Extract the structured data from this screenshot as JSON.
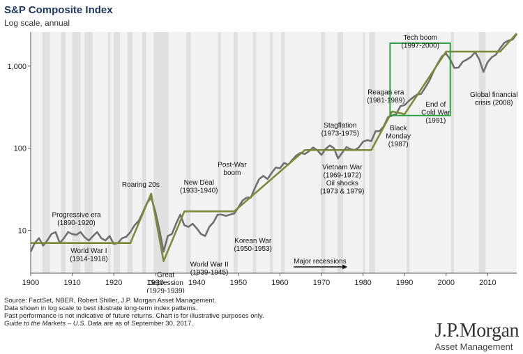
{
  "header": {
    "title": "S&P Composite Index",
    "subtitle": "Log scale, annual"
  },
  "chart_data": {
    "type": "line",
    "title": "S&P Composite Index",
    "subtitle": "Log scale, annual",
    "y_scale": "log",
    "xlim": [
      1900,
      2017
    ],
    "ylim": [
      3,
      2600
    ],
    "x_ticks": [
      1900,
      1910,
      1920,
      1930,
      1940,
      1950,
      1960,
      1970,
      1980,
      1990,
      2000,
      2010
    ],
    "y_ticks": [
      {
        "value": 10,
        "label": "10"
      },
      {
        "value": 100,
        "label": "100"
      },
      {
        "value": 1000,
        "label": "1,000"
      }
    ],
    "colors": {
      "index_line": "#6f6f6f",
      "trend_line": "#7b8b3a",
      "highlight_box": "#2ea043",
      "recession_band": "#e0e0e0",
      "background": "#f2f2f2"
    },
    "series": [
      {
        "role": "index",
        "x": [
          1900,
          1901,
          1902,
          1903,
          1904,
          1905,
          1906,
          1907,
          1908,
          1909,
          1910,
          1911,
          1912,
          1913,
          1914,
          1915,
          1916,
          1917,
          1918,
          1919,
          1920,
          1921,
          1922,
          1923,
          1924,
          1925,
          1926,
          1927,
          1928,
          1929,
          1930,
          1931,
          1932,
          1933,
          1934,
          1935,
          1936,
          1937,
          1938,
          1939,
          1940,
          1941,
          1942,
          1943,
          1944,
          1945,
          1946,
          1947,
          1948,
          1949,
          1950,
          1951,
          1952,
          1953,
          1954,
          1955,
          1956,
          1957,
          1958,
          1959,
          1960,
          1961,
          1962,
          1963,
          1964,
          1965,
          1966,
          1967,
          1968,
          1969,
          1970,
          1971,
          1972,
          1973,
          1974,
          1975,
          1976,
          1977,
          1978,
          1979,
          1980,
          1981,
          1982,
          1983,
          1984,
          1985,
          1986,
          1987,
          1988,
          1989,
          1990,
          1991,
          1992,
          1993,
          1994,
          1995,
          1996,
          1997,
          1998,
          1999,
          2000,
          2001,
          2002,
          2003,
          2004,
          2005,
          2006,
          2007,
          2008,
          2009,
          2010,
          2011,
          2012,
          2013,
          2014,
          2015,
          2016,
          2017
        ],
        "values": [
          5.5,
          7.0,
          8.0,
          6.5,
          7.5,
          9.0,
          9.5,
          7.0,
          8.0,
          9.5,
          9.0,
          8.8,
          9.5,
          8.2,
          7.5,
          8.5,
          9.5,
          8.0,
          7.5,
          8.5,
          6.8,
          7.0,
          8.0,
          8.3,
          9.5,
          11.5,
          13.0,
          16.5,
          21.5,
          25.0,
          17.0,
          10.0,
          5.5,
          8.5,
          9.0,
          12.0,
          15.5,
          11.5,
          11.0,
          12.0,
          10.5,
          9.0,
          8.5,
          11.0,
          12.5,
          15.5,
          15.5,
          15.0,
          15.5,
          16.0,
          19.0,
          23.0,
          25.0,
          25.0,
          33.0,
          42.0,
          46.0,
          42.0,
          50.0,
          58.0,
          57.0,
          66.0,
          63.0,
          72.0,
          82.0,
          88.0,
          85.0,
          92.0,
          102.0,
          94.0,
          83.0,
          98.0,
          108.0,
          100.0,
          75.0,
          88.0,
          103.0,
          97.0,
          95.0,
          102.0,
          120.0,
          125.0,
          122.0,
          160.0,
          162.0,
          185.0,
          238.0,
          250.0,
          260.0,
          325.0,
          335.0,
          375.0,
          415.0,
          450.0,
          460.0,
          550.0,
          670.0,
          870.0,
          1080.0,
          1320.0,
          1420.0,
          1200.0,
          950.0,
          960.0,
          1130.0,
          1200.0,
          1300.0,
          1480.0,
          1200.0,
          850.0,
          1120.0,
          1280.0,
          1380.0,
          1650.0,
          1920.0,
          2050.0,
          2100.0,
          2450.0
        ]
      },
      {
        "role": "trend",
        "x": [
          1900,
          1924,
          1929,
          1932,
          1937,
          1949,
          1966,
          1982,
          1987,
          1990,
          2000,
          2013,
          2017
        ],
        "values": [
          7.0,
          7.0,
          28.0,
          4.2,
          17.0,
          17.0,
          95.0,
          95.0,
          280.0,
          260.0,
          1500.0,
          1500.0,
          2500.0
        ]
      }
    ],
    "highlight": {
      "x": [
        1986.5,
        2001
      ],
      "y": [
        250,
        3100
      ]
    },
    "recession_bands": [
      [
        1902.8,
        1904.6
      ],
      [
        1907.3,
        1908.4
      ],
      [
        1910.0,
        1912.0
      ],
      [
        1913.0,
        1914.9
      ],
      [
        1918.6,
        1919.2
      ],
      [
        1920.0,
        1921.5
      ],
      [
        1923.3,
        1924.5
      ],
      [
        1926.8,
        1927.8
      ],
      [
        1929.6,
        1933.2
      ],
      [
        1937.4,
        1938.5
      ],
      [
        1945.1,
        1945.8
      ],
      [
        1948.9,
        1949.8
      ],
      [
        1953.5,
        1954.3
      ],
      [
        1957.6,
        1958.3
      ],
      [
        1960.3,
        1961.1
      ],
      [
        1969.9,
        1970.9
      ],
      [
        1973.9,
        1975.2
      ],
      [
        1980.0,
        1980.5
      ],
      [
        1981.5,
        1982.9
      ],
      [
        1990.5,
        1991.2
      ],
      [
        2001.2,
        2001.9
      ],
      [
        2007.9,
        2009.5
      ]
    ],
    "annotations": [
      {
        "lines": [
          "Progressive era",
          "(1890-1920)"
        ],
        "x": 1911,
        "y": 14.5
      },
      {
        "lines": [
          "Roaring 20s"
        ],
        "x": 1926.5,
        "y": 34
      },
      {
        "lines": [
          "World War I",
          "(1914-1918)"
        ],
        "x": 1914,
        "y": 5.3
      },
      {
        "lines": [
          "New Deal",
          "(1933-1940)"
        ],
        "x": 1940.5,
        "y": 36
      },
      {
        "lines": [
          "Great",
          "Depression",
          "(1929-1939)"
        ],
        "x": 1932.5,
        "y": 2.7
      },
      {
        "lines": [
          "World War II",
          "(1939-1945)"
        ],
        "x": 1943,
        "y": 3.6
      },
      {
        "lines": [
          "Post-War",
          "boom"
        ],
        "x": 1948.5,
        "y": 59
      },
      {
        "lines": [
          "Korean War",
          "(1950-1953)"
        ],
        "x": 1953.5,
        "y": 7.0
      },
      {
        "lines": [
          "Stagflation",
          "(1973-1975)"
        ],
        "x": 1974.5,
        "y": 178
      },
      {
        "lines": [
          "Vietnam War",
          "(1969-1972)",
          "Oil shocks",
          "(1973 & 1979)"
        ],
        "x": 1975,
        "y": 55
      },
      {
        "lines": [
          "Reagan era",
          "(1981-1989)"
        ],
        "x": 1985.5,
        "y": 450
      },
      {
        "lines": [
          "Tech boom",
          "(1997-2000)"
        ],
        "x": 1993.8,
        "y": 2100
      },
      {
        "lines": [
          "Black",
          "Monday",
          "(1987)"
        ],
        "x": 1988.5,
        "y": 165
      },
      {
        "lines": [
          "End of",
          "Cold War",
          "(1991)"
        ],
        "x": 1997.5,
        "y": 320
      },
      {
        "lines": [
          "Global financial",
          "crisis (2008)"
        ],
        "x": 2011.5,
        "y": 420
      }
    ],
    "recessions_label": "Major recessions"
  },
  "footer": {
    "source_lines": [
      "Source: FactSet, NBER, Robert Shiller, J.P. Morgan Asset Management.",
      "Data shown in log scale to best illustrate long-term index patterns.",
      "Past performance is not indicative of future returns. Chart is for illustrative purposes only."
    ],
    "guide_italic": "Guide to the Markets – U.S.",
    "guide_rest": " Data are as of September 30, 2017.",
    "logo_text": "J.P.Morgan",
    "logo_sub": "Asset Management"
  }
}
